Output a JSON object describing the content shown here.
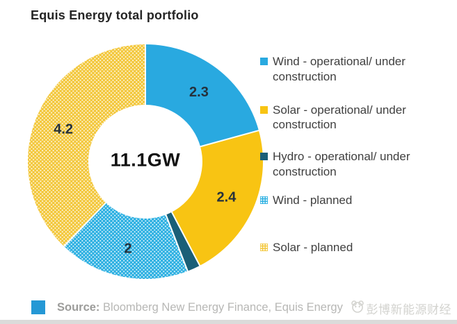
{
  "title": "Equis Energy total portfolio",
  "chart_data": {
    "type": "pie",
    "subtype": "donut",
    "title": "Equis Energy total portfolio",
    "center_label": "11.1GW",
    "total_value": 11.1,
    "units": "GW",
    "start_angle_deg": 0,
    "direction": "clockwise",
    "legend_position": "right",
    "segments": [
      {
        "name": "Wind - operational/ under construction",
        "value": 2.3,
        "label": "2.3",
        "color": "#29A9E0",
        "fill_style": "solid"
      },
      {
        "name": "Solar - operational/ under construction",
        "value": 2.4,
        "label": "2.4",
        "color": "#F8C413",
        "fill_style": "solid"
      },
      {
        "name": "Hydro - operational/ under construction",
        "value": 0.2,
        "label": "",
        "color": "#1A5F78",
        "fill_style": "solid"
      },
      {
        "name": "Wind - planned",
        "value": 2.0,
        "label": "2",
        "color": "#2FB1E2",
        "fill_style": "dotted"
      },
      {
        "name": "Solar - planned",
        "value": 4.2,
        "label": "4.2",
        "color": "#F3C83E",
        "fill_style": "dotted"
      }
    ],
    "value_label_color": "#25313c"
  },
  "footer": {
    "swatch_color": "#2598D5",
    "source_label": "Source:",
    "source_text": " Bloomberg New Energy Finance, Equis Energy",
    "watermark_text": "彭博新能源财经"
  }
}
